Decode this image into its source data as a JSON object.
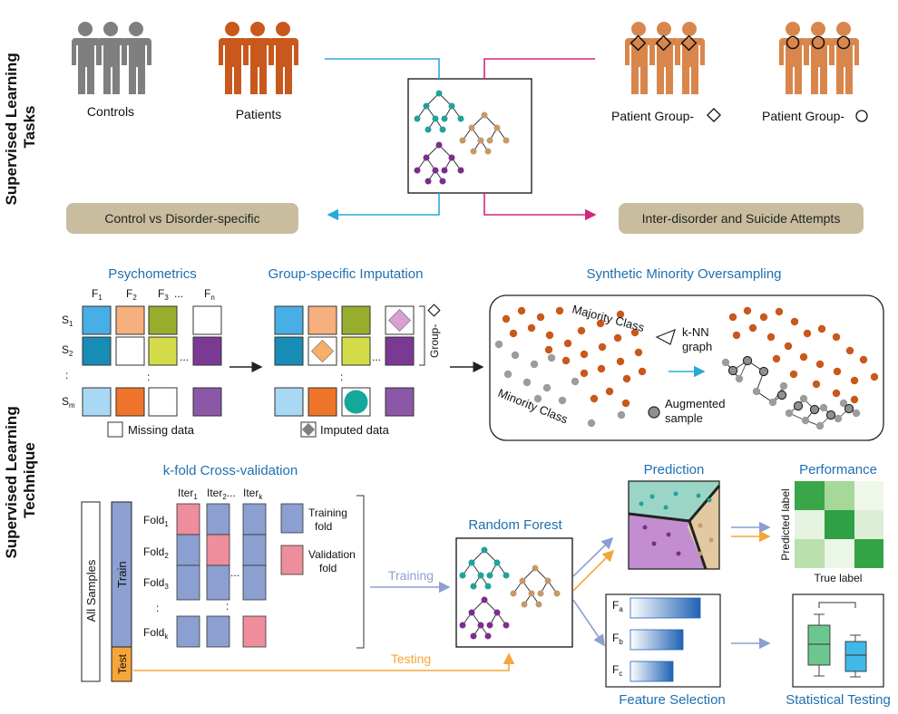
{
  "sections": {
    "tasks": "Supervised Learning\nTasks",
    "technique": "Supervised Learning\nTechnique"
  },
  "tasks": {
    "controls": "Controls",
    "patients": "Patients",
    "group_diamond": "Patient Group-",
    "group_circle": "Patient Group-",
    "box_left": "Control vs Disorder-specific",
    "box_right": "Inter-disorder and Suicide Attempts"
  },
  "psychometrics": {
    "title": "Psychometrics",
    "features": [
      "F1",
      "F2",
      "F3",
      "...",
      "Fn"
    ],
    "subjects": [
      "S1",
      "S2",
      ":",
      "Sm"
    ],
    "missing_legend": "Missing data"
  },
  "imputation": {
    "title": "Group-specific Imputation",
    "group_label": "Group-",
    "imputed_legend": "Imputed data"
  },
  "smote": {
    "title": "Synthetic Minority Oversampling",
    "majority": "Majority Class",
    "minority": "Minority Class",
    "knn": "k-NN\ngraph",
    "augmented": "Augmented\nsample"
  },
  "cv": {
    "title": "k-fold Cross-validation",
    "all_samples": "All Samples",
    "train": "Train",
    "test": "Test",
    "iters": [
      "Iter1",
      "Iter2",
      "Iterk"
    ],
    "folds": [
      "Fold1",
      "Fold2",
      "Fold3",
      "Foldk"
    ],
    "legend_training": "Training\nfold",
    "legend_validation": "Validation\nfold"
  },
  "flow": {
    "random_forest": "Random Forest",
    "training": "Training",
    "testing": "Testing",
    "prediction": "Prediction",
    "performance": "Performance",
    "predicted_label": "Predicted label",
    "true_label": "True label",
    "feature_selection": "Feature Selection",
    "statistical_testing": "Statistical Testing",
    "features": [
      "Fa",
      "Fb",
      "Fc"
    ]
  },
  "colors": {
    "control": "#7f7f7f",
    "patient": "#c9581c",
    "patient_light": "#d9864c",
    "cyan": "#2aa8d8",
    "magenta": "#d4257e",
    "blue_text": "#1f6fb0",
    "fold_blue": "#8c9fd1",
    "fold_red": "#ee8e9c",
    "test_orange": "#f5a53a",
    "box_tan": "#c8bd9f",
    "green": "#3aa64a"
  }
}
